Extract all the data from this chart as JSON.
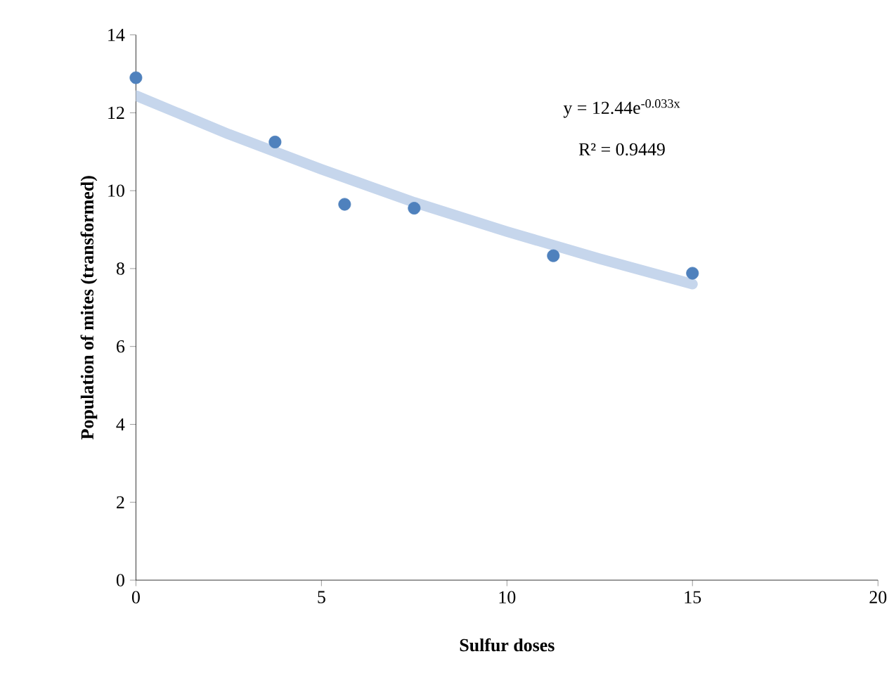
{
  "chart_data": {
    "type": "scatter",
    "xlabel": "Sulfur doses",
    "ylabel": "Population of mites (transformed)",
    "xlim": [
      0,
      20
    ],
    "xticks": [
      0,
      5,
      10,
      15,
      20
    ],
    "ylim": [
      0,
      14
    ],
    "yticks": [
      0,
      2,
      4,
      6,
      8,
      10,
      12,
      14
    ],
    "grid": false,
    "series": [
      {
        "type": "line",
        "color": "#c6d6ec",
        "x": [
          0,
          2.5,
          5,
          7.5,
          10,
          12.5,
          15
        ],
        "values": [
          12.44,
          11.45,
          10.55,
          9.7,
          8.95,
          8.25,
          7.6
        ]
      },
      {
        "color": "#4f81bd",
        "marker": "circle",
        "x": [
          0,
          3.75,
          5.625,
          7.5,
          11.25,
          15
        ],
        "values": [
          12.9,
          11.25,
          9.65,
          9.55,
          8.33,
          7.88
        ]
      }
    ],
    "annotations": [
      "y = 12.44e$^{-0.033x}$",
      "R² = 0.9449"
    ]
  }
}
